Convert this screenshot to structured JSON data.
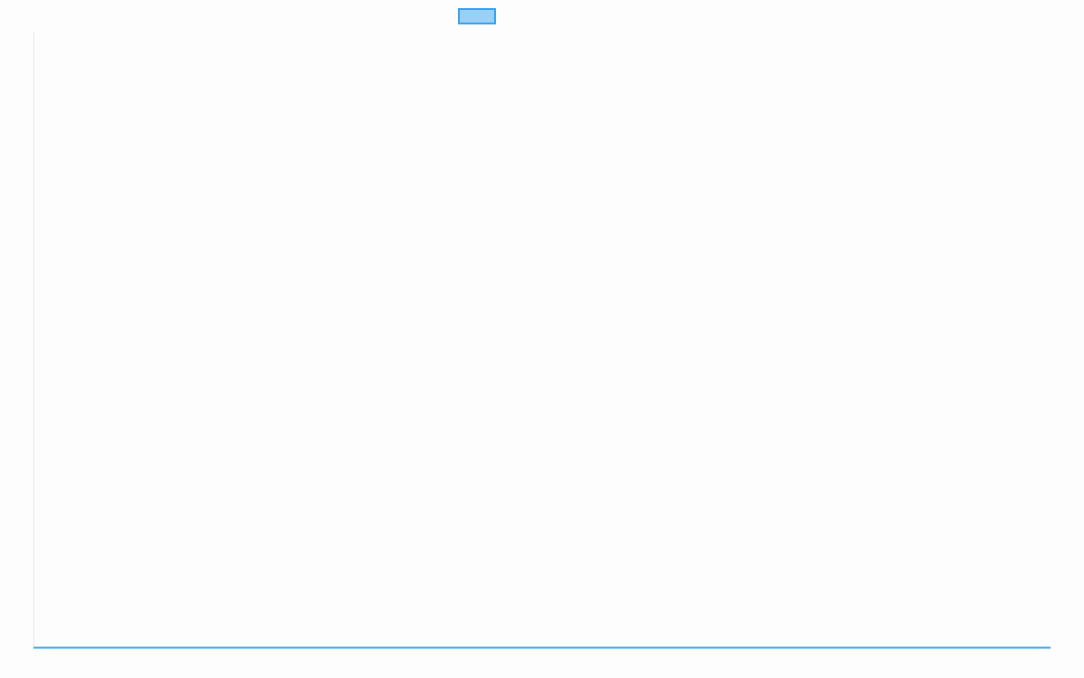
{
  "chart_data": {
    "type": "line",
    "title": "",
    "xlabel": "",
    "ylabel": "",
    "categories": [],
    "series": [
      {
        "name": "",
        "values": [],
        "color": "#36a2eb",
        "fill": "#9ad0f5"
      }
    ],
    "grid": false,
    "legend": "top-center"
  }
}
